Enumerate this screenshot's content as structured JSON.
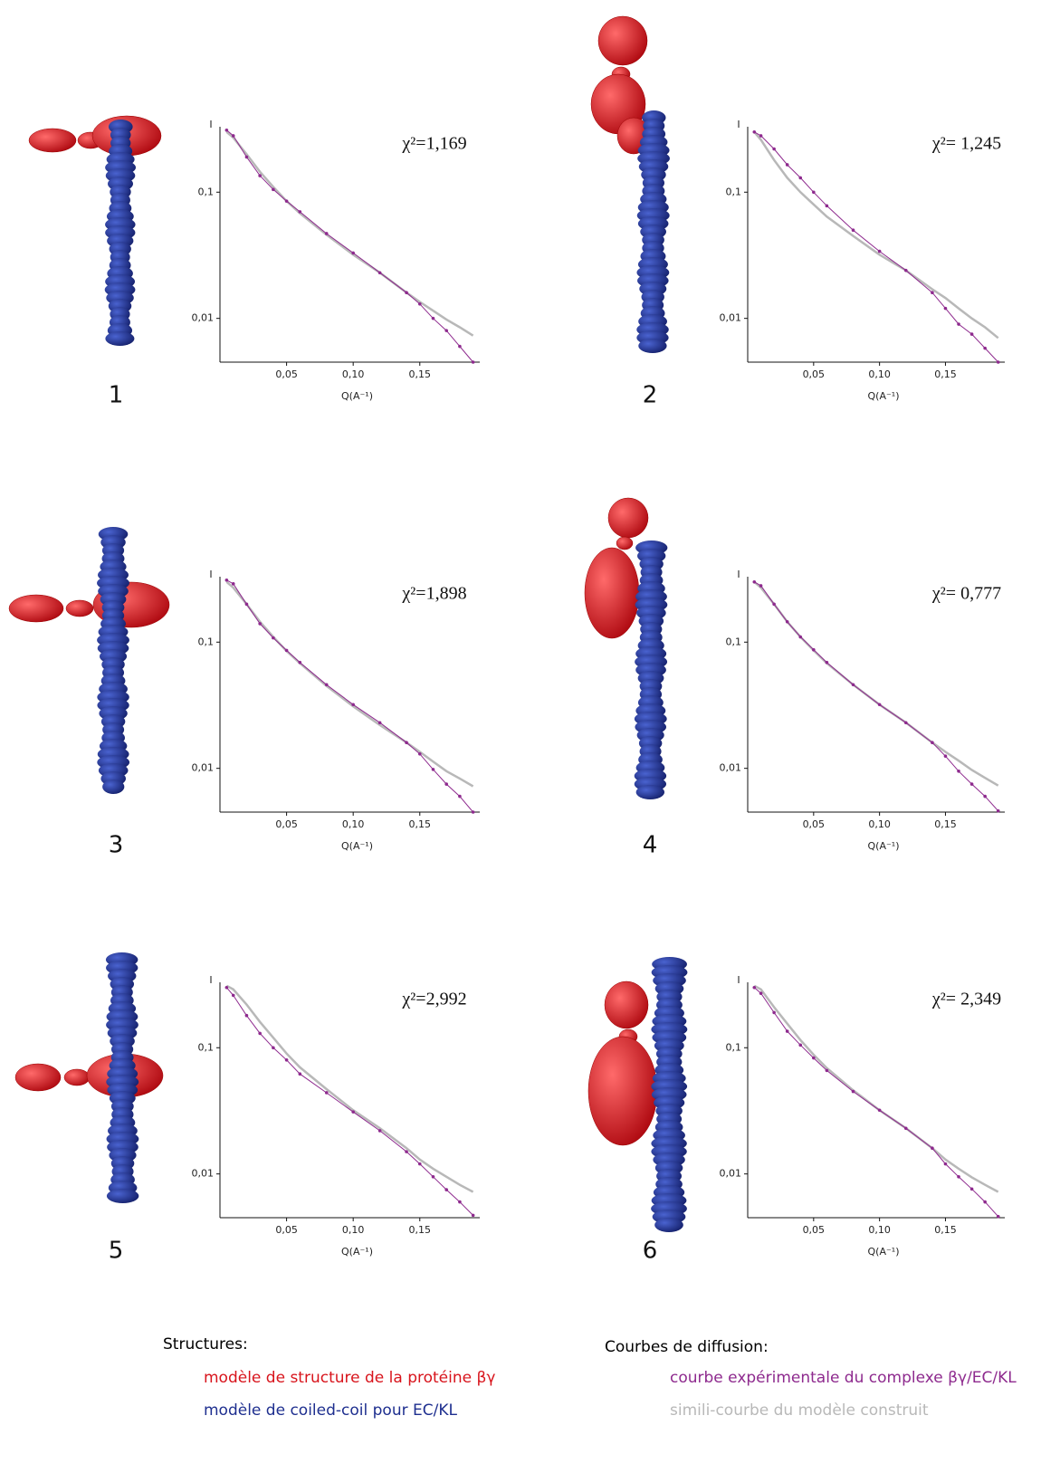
{
  "chart_data": [
    {
      "type": "line",
      "panel": "1",
      "annotation": "χ²=1,169",
      "ylabel": "I",
      "xlabel": "Q(A⁻¹)",
      "log_y": true,
      "xlim": [
        0,
        0.195
      ],
      "ylim": [
        0.0045,
        0.33
      ],
      "xticks": [
        {
          "value": 0.05,
          "label": "0,05"
        },
        {
          "value": 0.1,
          "label": "0,10"
        },
        {
          "value": 0.15,
          "label": "0,15"
        }
      ],
      "yticks": [
        {
          "value": 0.1,
          "label": "0,1"
        },
        {
          "value": 0.01,
          "label": "0,01"
        }
      ],
      "x": [
        0.005,
        0.01,
        0.02,
        0.03,
        0.04,
        0.05,
        0.06,
        0.08,
        0.1,
        0.12,
        0.14,
        0.15,
        0.16,
        0.17,
        0.18,
        0.19
      ],
      "series": [
        {
          "name": "courbe expérimentale du complexe βγ/EC/KL",
          "color": "#8e2a8e",
          "values": [
            0.31,
            0.28,
            0.19,
            0.135,
            0.105,
            0.085,
            0.07,
            0.047,
            0.033,
            0.023,
            0.016,
            0.013,
            0.01,
            0.008,
            0.006,
            0.0045
          ]
        },
        {
          "name": "simili-courbe du modèle construit",
          "color": "#b8b8b8",
          "values": [
            0.3,
            0.27,
            0.2,
            0.145,
            0.11,
            0.085,
            0.068,
            0.046,
            0.032,
            0.023,
            0.016,
            0.0135,
            0.0115,
            0.0098,
            0.0085,
            0.0073
          ]
        }
      ]
    },
    {
      "type": "line",
      "panel": "2",
      "annotation": "χ²= 1,245",
      "ylabel": "I",
      "xlabel": "Q(A⁻¹)",
      "log_y": true,
      "xlim": [
        0,
        0.195
      ],
      "ylim": [
        0.0045,
        0.33
      ],
      "xticks": [
        {
          "value": 0.05,
          "label": "0,05"
        },
        {
          "value": 0.1,
          "label": "0,10"
        },
        {
          "value": 0.15,
          "label": "0,15"
        }
      ],
      "yticks": [
        {
          "value": 0.1,
          "label": "0,1"
        },
        {
          "value": 0.01,
          "label": "0,01"
        }
      ],
      "x": [
        0.005,
        0.01,
        0.02,
        0.03,
        0.04,
        0.05,
        0.06,
        0.08,
        0.1,
        0.12,
        0.14,
        0.15,
        0.16,
        0.17,
        0.18,
        0.19
      ],
      "series": [
        {
          "color": "#8e2a8e",
          "values": [
            0.3,
            0.28,
            0.22,
            0.165,
            0.13,
            0.1,
            0.078,
            0.05,
            0.034,
            0.024,
            0.016,
            0.012,
            0.009,
            0.0075,
            0.0058,
            0.0045
          ]
        },
        {
          "color": "#b8b8b8",
          "values": [
            0.3,
            0.26,
            0.18,
            0.13,
            0.1,
            0.08,
            0.064,
            0.045,
            0.032,
            0.024,
            0.017,
            0.0145,
            0.012,
            0.01,
            0.0085,
            0.007
          ]
        }
      ]
    },
    {
      "type": "line",
      "panel": "3",
      "annotation": "χ²=1,898",
      "ylabel": "I",
      "xlabel": "Q(A⁻¹)",
      "log_y": true,
      "xlim": [
        0,
        0.195
      ],
      "ylim": [
        0.0045,
        0.33
      ],
      "xticks": [
        {
          "value": 0.05,
          "label": "0,05"
        },
        {
          "value": 0.1,
          "label": "0,10"
        },
        {
          "value": 0.15,
          "label": "0,15"
        }
      ],
      "yticks": [
        {
          "value": 0.1,
          "label": "0,1"
        },
        {
          "value": 0.01,
          "label": "0,01"
        }
      ],
      "x": [
        0.005,
        0.01,
        0.02,
        0.03,
        0.04,
        0.05,
        0.06,
        0.08,
        0.1,
        0.12,
        0.14,
        0.15,
        0.16,
        0.17,
        0.18,
        0.19
      ],
      "series": [
        {
          "color": "#8e2a8e",
          "values": [
            0.31,
            0.29,
            0.2,
            0.14,
            0.108,
            0.086,
            0.069,
            0.046,
            0.032,
            0.023,
            0.016,
            0.013,
            0.0098,
            0.0075,
            0.006,
            0.0045
          ]
        },
        {
          "color": "#b8b8b8",
          "values": [
            0.3,
            0.27,
            0.2,
            0.145,
            0.11,
            0.085,
            0.068,
            0.045,
            0.031,
            0.022,
            0.016,
            0.0135,
            0.0113,
            0.0095,
            0.0083,
            0.0072
          ]
        }
      ]
    },
    {
      "type": "line",
      "panel": "4",
      "annotation": "χ²= 0,777",
      "ylabel": "I",
      "xlabel": "Q(A⁻¹)",
      "log_y": true,
      "xlim": [
        0,
        0.195
      ],
      "ylim": [
        0.0045,
        0.33
      ],
      "xticks": [
        {
          "value": 0.05,
          "label": "0,05"
        },
        {
          "value": 0.1,
          "label": "0,10"
        },
        {
          "value": 0.15,
          "label": "0,15"
        }
      ],
      "yticks": [
        {
          "value": 0.1,
          "label": "0,1"
        },
        {
          "value": 0.01,
          "label": "0,01"
        }
      ],
      "x": [
        0.005,
        0.01,
        0.02,
        0.03,
        0.04,
        0.05,
        0.06,
        0.08,
        0.1,
        0.12,
        0.14,
        0.15,
        0.16,
        0.17,
        0.18,
        0.19
      ],
      "series": [
        {
          "color": "#8e2a8e",
          "values": [
            0.3,
            0.28,
            0.2,
            0.145,
            0.11,
            0.087,
            0.069,
            0.046,
            0.032,
            0.023,
            0.016,
            0.0125,
            0.0095,
            0.0075,
            0.006,
            0.0046
          ]
        },
        {
          "color": "#b8b8b8",
          "values": [
            0.3,
            0.27,
            0.2,
            0.145,
            0.11,
            0.086,
            0.068,
            0.046,
            0.032,
            0.023,
            0.016,
            0.0135,
            0.0115,
            0.0097,
            0.0084,
            0.0073
          ]
        }
      ]
    },
    {
      "type": "line",
      "panel": "5",
      "annotation": "χ²=2,992",
      "ylabel": "I",
      "xlabel": "Q(A⁻¹)",
      "log_y": true,
      "xlim": [
        0,
        0.195
      ],
      "ylim": [
        0.0045,
        0.33
      ],
      "xticks": [
        {
          "value": 0.05,
          "label": "0,05"
        },
        {
          "value": 0.1,
          "label": "0,10"
        },
        {
          "value": 0.15,
          "label": "0,15"
        }
      ],
      "yticks": [
        {
          "value": 0.1,
          "label": "0,1"
        },
        {
          "value": 0.01,
          "label": "0,01"
        }
      ],
      "x": [
        0.005,
        0.01,
        0.02,
        0.03,
        0.04,
        0.05,
        0.06,
        0.08,
        0.1,
        0.12,
        0.14,
        0.15,
        0.16,
        0.17,
        0.18,
        0.19
      ],
      "series": [
        {
          "color": "#8e2a8e",
          "values": [
            0.3,
            0.26,
            0.18,
            0.13,
            0.1,
            0.08,
            0.062,
            0.044,
            0.031,
            0.022,
            0.015,
            0.012,
            0.0095,
            0.0075,
            0.006,
            0.0047
          ]
        },
        {
          "color": "#b8b8b8",
          "values": [
            0.31,
            0.29,
            0.22,
            0.16,
            0.12,
            0.09,
            0.07,
            0.047,
            0.032,
            0.023,
            0.016,
            0.013,
            0.011,
            0.0095,
            0.0082,
            0.0072
          ]
        }
      ]
    },
    {
      "type": "line",
      "panel": "6",
      "annotation": "χ²= 2,349",
      "ylabel": "I",
      "xlabel": "Q(A⁻¹)",
      "log_y": true,
      "xlim": [
        0,
        0.195
      ],
      "ylim": [
        0.0045,
        0.33
      ],
      "xticks": [
        {
          "value": 0.05,
          "label": "0,05"
        },
        {
          "value": 0.1,
          "label": "0,10"
        },
        {
          "value": 0.15,
          "label": "0,15"
        }
      ],
      "yticks": [
        {
          "value": 0.1,
          "label": "0,1"
        },
        {
          "value": 0.01,
          "label": "0,01"
        }
      ],
      "x": [
        0.005,
        0.01,
        0.02,
        0.03,
        0.04,
        0.05,
        0.06,
        0.08,
        0.1,
        0.12,
        0.14,
        0.15,
        0.16,
        0.17,
        0.18,
        0.19
      ],
      "series": [
        {
          "color": "#8e2a8e",
          "values": [
            0.3,
            0.27,
            0.19,
            0.135,
            0.105,
            0.083,
            0.066,
            0.045,
            0.032,
            0.023,
            0.016,
            0.012,
            0.0095,
            0.0076,
            0.006,
            0.0046
          ]
        },
        {
          "color": "#b8b8b8",
          "values": [
            0.31,
            0.29,
            0.21,
            0.155,
            0.115,
            0.088,
            0.069,
            0.046,
            0.032,
            0.023,
            0.016,
            0.013,
            0.011,
            0.0094,
            0.0082,
            0.0072
          ]
        }
      ]
    }
  ],
  "legend": {
    "structures_title": "Structures:",
    "structures": [
      {
        "label": "modèle de structure de la protéine βγ",
        "color": "#d8141c"
      },
      {
        "label": "modèle de coiled-coil pour EC/KL",
        "color": "#1e2f8f"
      }
    ],
    "curves_title": "Courbes de diffusion:"
  }
}
